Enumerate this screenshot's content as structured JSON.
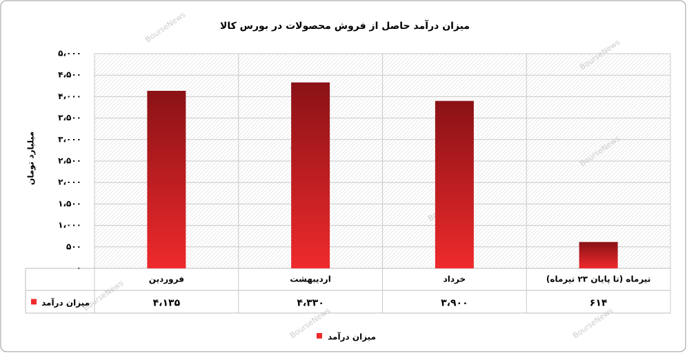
{
  "chart_data": {
    "type": "bar",
    "title": "میزان درآمد حاصل از فروش محصولات در بورس کالا",
    "y_label": "میلیارد تومان",
    "watermark": "BourseNews",
    "categories": [
      "فروردین",
      "اردیبهشت",
      "خرداد",
      "تیرماه (تا پایان ۲۳ تیرماه)"
    ],
    "series": [
      {
        "name": "میزان درآمد",
        "color": "#ee2a2c",
        "values": [
          4135,
          4330,
          3900,
          614
        ],
        "value_labels": [
          "۴،۱۳۵",
          "۴،۳۳۰",
          "۳،۹۰۰",
          "۶۱۴"
        ]
      }
    ],
    "ylim": [
      0,
      5000
    ],
    "yticks": [
      {
        "value": 0,
        "label": "۰"
      },
      {
        "value": 500,
        "label": "۵۰۰"
      },
      {
        "value": 1000,
        "label": "۱،۰۰۰"
      },
      {
        "value": 1500,
        "label": "۱،۵۰۰"
      },
      {
        "value": 2000,
        "label": "۲،۰۰۰"
      },
      {
        "value": 2500,
        "label": "۲،۵۰۰"
      },
      {
        "value": 3000,
        "label": "۳،۰۰۰"
      },
      {
        "value": 3500,
        "label": "۳،۵۰۰"
      },
      {
        "value": 4000,
        "label": "۴،۰۰۰"
      },
      {
        "value": 4500,
        "label": "۴،۵۰۰"
      },
      {
        "value": 5000,
        "label": "۵،۰۰۰"
      }
    ],
    "grid": true,
    "legend": "bottom"
  }
}
